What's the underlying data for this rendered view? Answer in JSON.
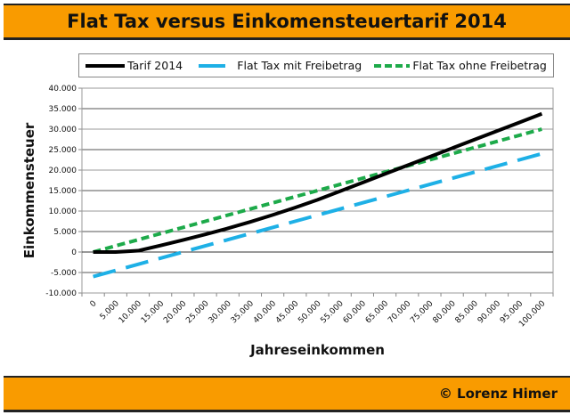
{
  "header": {
    "title": "Flat Tax versus Einkomensteuertarif 2014"
  },
  "footer": {
    "credit": "© Lorenz Himer"
  },
  "colors": {
    "banner": "#F99B00",
    "tarif": "#000000",
    "mit": "#1EB0E6",
    "ohne": "#1DAA4A"
  },
  "chart_data": {
    "type": "line",
    "title": "Flat Tax versus Einkomensteuertarif 2014",
    "xlabel": "Jahreseinkommen",
    "ylabel": "Einkommensteuer",
    "ylim": [
      -10000,
      40000
    ],
    "yticks": [
      "-10.000",
      "-5.000",
      "0",
      "5.000",
      "10.000",
      "15.000",
      "20.000",
      "25.000",
      "30.000",
      "35.000",
      "40.000"
    ],
    "categories": [
      "0",
      "5.000",
      "10.000",
      "15.000",
      "20.000",
      "25.000",
      "30.000",
      "35.000",
      "40.000",
      "45.000",
      "50.000",
      "55.000",
      "60.000",
      "65.000",
      "70.000",
      "75.000",
      "80.000",
      "85.000",
      "90.000",
      "95.000",
      "100.000"
    ],
    "grid": true,
    "legend_position": "top",
    "series": [
      {
        "name": "Tarif 2014",
        "style": "solid",
        "values": [
          0,
          0,
          315,
          1600,
          2920,
          4300,
          5775,
          7360,
          9050,
          10850,
          12740,
          14840,
          16940,
          19040,
          21140,
          23240,
          25340,
          27440,
          29540,
          31640,
          33740
        ]
      },
      {
        "name": "Flat Tax mit Freibetrag",
        "style": "long-dash",
        "values": [
          -6000,
          -4500,
          -3000,
          -1500,
          0,
          1500,
          3000,
          4500,
          6000,
          7500,
          9000,
          10500,
          12000,
          13500,
          15000,
          16500,
          18000,
          19500,
          21000,
          22500,
          24000
        ]
      },
      {
        "name": "Flat Tax ohne Freibetrag",
        "style": "short-dash",
        "values": [
          0,
          1500,
          3000,
          4500,
          6000,
          7500,
          9000,
          10500,
          12000,
          13500,
          15000,
          16500,
          18000,
          19500,
          21000,
          22500,
          24000,
          25500,
          27000,
          28500,
          30000
        ]
      }
    ]
  }
}
